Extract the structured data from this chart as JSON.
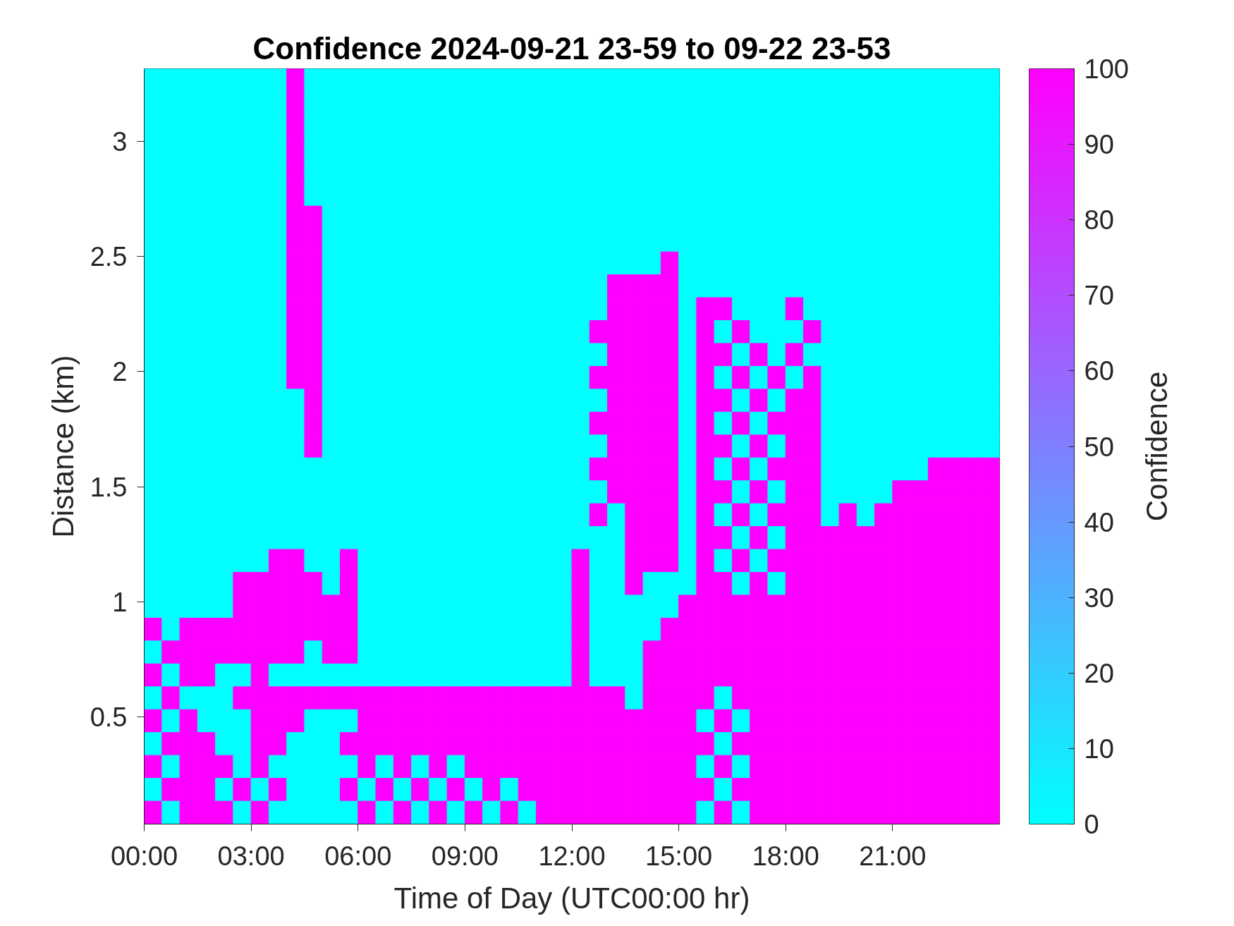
{
  "chart_data": {
    "type": "heatmap",
    "title": "Confidence 2024-09-21 23-59 to 09-22 23-53",
    "xlabel": "Time of Day (UTC00:00 hr)",
    "ylabel": "Distance (km)",
    "clabel": "Confidence",
    "xlim": [
      0,
      24
    ],
    "xticks": [
      {
        "value": 0,
        "label": "00:00"
      },
      {
        "value": 3,
        "label": "03:00"
      },
      {
        "value": 6,
        "label": "06:00"
      },
      {
        "value": 9,
        "label": "09:00"
      },
      {
        "value": 12,
        "label": "12:00"
      },
      {
        "value": 15,
        "label": "15:00"
      },
      {
        "value": 18,
        "label": "18:00"
      },
      {
        "value": 21,
        "label": "21:00"
      }
    ],
    "ylim": [
      0.035,
      3.315
    ],
    "yticks": [
      0.5,
      1,
      1.5,
      2,
      2.5,
      3
    ],
    "clim": [
      0,
      100
    ],
    "cticks": [
      0,
      10,
      20,
      30,
      40,
      50,
      60,
      70,
      80,
      90,
      100
    ],
    "cells": [
      [
        0,
        0,
        0,
        0,
        0,
        0,
        0,
        0,
        100,
        0,
        0,
        0,
        0,
        0,
        0,
        0,
        0,
        0,
        0,
        0,
        0,
        0,
        0,
        0,
        0,
        0,
        0,
        0,
        0,
        0,
        0,
        0,
        0,
        0,
        0,
        0,
        0,
        0,
        0,
        0,
        0,
        0,
        0,
        0,
        0,
        0,
        0,
        0
      ],
      [
        0,
        0,
        0,
        0,
        0,
        0,
        0,
        0,
        100,
        0,
        0,
        0,
        0,
        0,
        0,
        0,
        0,
        0,
        0,
        0,
        0,
        0,
        0,
        0,
        0,
        0,
        0,
        0,
        0,
        0,
        0,
        0,
        0,
        0,
        0,
        0,
        0,
        0,
        0,
        0,
        0,
        0,
        0,
        0,
        0,
        0,
        0,
        0
      ],
      [
        0,
        0,
        0,
        0,
        0,
        0,
        0,
        0,
        100,
        0,
        0,
        0,
        0,
        0,
        0,
        0,
        0,
        0,
        0,
        0,
        0,
        0,
        0,
        0,
        0,
        0,
        0,
        0,
        0,
        0,
        0,
        0,
        0,
        0,
        0,
        0,
        0,
        0,
        0,
        0,
        0,
        0,
        0,
        0,
        0,
        0,
        0,
        0
      ],
      [
        0,
        0,
        0,
        0,
        0,
        0,
        0,
        0,
        100,
        0,
        0,
        0,
        0,
        0,
        0,
        0,
        0,
        0,
        0,
        0,
        0,
        0,
        0,
        0,
        0,
        0,
        0,
        0,
        0,
        0,
        0,
        0,
        0,
        0,
        0,
        0,
        0,
        0,
        0,
        0,
        0,
        0,
        0,
        0,
        0,
        0,
        0,
        0
      ],
      [
        0,
        0,
        0,
        0,
        0,
        0,
        0,
        0,
        100,
        0,
        0,
        0,
        0,
        0,
        0,
        0,
        0,
        0,
        0,
        0,
        0,
        0,
        0,
        0,
        0,
        0,
        0,
        0,
        0,
        0,
        0,
        0,
        0,
        0,
        0,
        0,
        0,
        0,
        0,
        0,
        0,
        0,
        0,
        0,
        0,
        0,
        0,
        0
      ],
      [
        0,
        0,
        0,
        0,
        0,
        0,
        0,
        0,
        100,
        0,
        0,
        0,
        0,
        0,
        0,
        0,
        0,
        0,
        0,
        0,
        0,
        0,
        0,
        0,
        0,
        0,
        0,
        0,
        0,
        0,
        0,
        0,
        0,
        0,
        0,
        0,
        0,
        0,
        0,
        0,
        0,
        0,
        0,
        0,
        0,
        0,
        0,
        0
      ],
      [
        0,
        0,
        0,
        0,
        0,
        0,
        0,
        0,
        100,
        100,
        0,
        0,
        0,
        0,
        0,
        0,
        0,
        0,
        0,
        0,
        0,
        0,
        0,
        0,
        0,
        0,
        0,
        0,
        0,
        0,
        0,
        0,
        0,
        0,
        0,
        0,
        0,
        0,
        0,
        0,
        0,
        0,
        0,
        0,
        0,
        0,
        0,
        0
      ],
      [
        0,
        0,
        0,
        0,
        0,
        0,
        0,
        0,
        100,
        100,
        0,
        0,
        0,
        0,
        0,
        0,
        0,
        0,
        0,
        0,
        0,
        0,
        0,
        0,
        0,
        0,
        0,
        0,
        0,
        0,
        0,
        0,
        0,
        0,
        0,
        0,
        0,
        0,
        0,
        0,
        0,
        0,
        0,
        0,
        0,
        0,
        0,
        0
      ],
      [
        0,
        0,
        0,
        0,
        0,
        0,
        0,
        0,
        100,
        100,
        0,
        0,
        0,
        0,
        0,
        0,
        0,
        0,
        0,
        0,
        0,
        0,
        0,
        0,
        0,
        0,
        0,
        0,
        0,
        100,
        0,
        0,
        0,
        0,
        0,
        0,
        0,
        0,
        0,
        0,
        0,
        0,
        0,
        0,
        0,
        0,
        0,
        0
      ],
      [
        0,
        0,
        0,
        0,
        0,
        0,
        0,
        0,
        100,
        100,
        0,
        0,
        0,
        0,
        0,
        0,
        0,
        0,
        0,
        0,
        0,
        0,
        0,
        0,
        0,
        0,
        100,
        100,
        100,
        100,
        0,
        0,
        0,
        0,
        0,
        0,
        0,
        0,
        0,
        0,
        0,
        0,
        0,
        0,
        0,
        0,
        0,
        0
      ],
      [
        0,
        0,
        0,
        0,
        0,
        0,
        0,
        0,
        100,
        100,
        0,
        0,
        0,
        0,
        0,
        0,
        0,
        0,
        0,
        0,
        0,
        0,
        0,
        0,
        0,
        0,
        100,
        100,
        100,
        100,
        0,
        100,
        100,
        0,
        0,
        0,
        100,
        0,
        0,
        0,
        0,
        0,
        0,
        0,
        0,
        0,
        0,
        0
      ],
      [
        0,
        0,
        0,
        0,
        0,
        0,
        0,
        0,
        100,
        100,
        0,
        0,
        0,
        0,
        0,
        0,
        0,
        0,
        0,
        0,
        0,
        0,
        0,
        0,
        0,
        100,
        100,
        100,
        100,
        100,
        0,
        100,
        0,
        100,
        0,
        0,
        0,
        100,
        0,
        0,
        0,
        0,
        0,
        0,
        0,
        0,
        0,
        0
      ],
      [
        0,
        0,
        0,
        0,
        0,
        0,
        0,
        0,
        100,
        100,
        0,
        0,
        0,
        0,
        0,
        0,
        0,
        0,
        0,
        0,
        0,
        0,
        0,
        0,
        0,
        0,
        100,
        100,
        100,
        100,
        0,
        100,
        100,
        0,
        100,
        0,
        100,
        0,
        0,
        0,
        0,
        0,
        0,
        0,
        0,
        0,
        0,
        0
      ],
      [
        0,
        0,
        0,
        0,
        0,
        0,
        0,
        0,
        100,
        100,
        0,
        0,
        0,
        0,
        0,
        0,
        0,
        0,
        0,
        0,
        0,
        0,
        0,
        0,
        0,
        100,
        100,
        100,
        100,
        100,
        0,
        100,
        0,
        100,
        0,
        100,
        0,
        100,
        0,
        0,
        0,
        0,
        0,
        0,
        0,
        0,
        0,
        0
      ],
      [
        0,
        0,
        0,
        0,
        0,
        0,
        0,
        0,
        0,
        100,
        0,
        0,
        0,
        0,
        0,
        0,
        0,
        0,
        0,
        0,
        0,
        0,
        0,
        0,
        0,
        0,
        100,
        100,
        100,
        100,
        0,
        100,
        100,
        0,
        100,
        0,
        100,
        100,
        0,
        0,
        0,
        0,
        0,
        0,
        0,
        0,
        0,
        0
      ],
      [
        0,
        0,
        0,
        0,
        0,
        0,
        0,
        0,
        0,
        100,
        0,
        0,
        0,
        0,
        0,
        0,
        0,
        0,
        0,
        0,
        0,
        0,
        0,
        0,
        0,
        100,
        100,
        100,
        100,
        100,
        0,
        100,
        0,
        100,
        0,
        100,
        100,
        100,
        0,
        0,
        0,
        0,
        0,
        0,
        0,
        0,
        0,
        0
      ],
      [
        0,
        0,
        0,
        0,
        0,
        0,
        0,
        0,
        0,
        100,
        0,
        0,
        0,
        0,
        0,
        0,
        0,
        0,
        0,
        0,
        0,
        0,
        0,
        0,
        0,
        0,
        100,
        100,
        100,
        100,
        0,
        100,
        100,
        0,
        100,
        0,
        100,
        100,
        0,
        0,
        0,
        0,
        0,
        0,
        0,
        0,
        0,
        0
      ],
      [
        0,
        0,
        0,
        0,
        0,
        0,
        0,
        0,
        0,
        0,
        0,
        0,
        0,
        0,
        0,
        0,
        0,
        0,
        0,
        0,
        0,
        0,
        0,
        0,
        0,
        100,
        100,
        100,
        100,
        100,
        0,
        100,
        0,
        100,
        0,
        100,
        100,
        100,
        0,
        0,
        0,
        0,
        0,
        0,
        100,
        100,
        100,
        100
      ],
      [
        0,
        0,
        0,
        0,
        0,
        0,
        0,
        0,
        0,
        0,
        0,
        0,
        0,
        0,
        0,
        0,
        0,
        0,
        0,
        0,
        0,
        0,
        0,
        0,
        0,
        0,
        100,
        100,
        100,
        100,
        0,
        100,
        100,
        0,
        100,
        0,
        100,
        100,
        0,
        0,
        0,
        0,
        100,
        100,
        100,
        100,
        100,
        100
      ],
      [
        0,
        0,
        0,
        0,
        0,
        0,
        0,
        0,
        0,
        0,
        0,
        0,
        0,
        0,
        0,
        0,
        0,
        0,
        0,
        0,
        0,
        0,
        0,
        0,
        0,
        100,
        0,
        100,
        100,
        100,
        0,
        100,
        0,
        100,
        0,
        100,
        100,
        100,
        0,
        100,
        0,
        100,
        100,
        100,
        100,
        100,
        100,
        100
      ],
      [
        0,
        0,
        0,
        0,
        0,
        0,
        0,
        0,
        0,
        0,
        0,
        0,
        0,
        0,
        0,
        0,
        0,
        0,
        0,
        0,
        0,
        0,
        0,
        0,
        0,
        0,
        0,
        100,
        100,
        100,
        0,
        100,
        100,
        0,
        100,
        0,
        100,
        100,
        100,
        100,
        100,
        100,
        100,
        100,
        100,
        100,
        100,
        100
      ],
      [
        0,
        0,
        0,
        0,
        0,
        0,
        0,
        100,
        100,
        0,
        0,
        100,
        0,
        0,
        0,
        0,
        0,
        0,
        0,
        0,
        0,
        0,
        0,
        0,
        100,
        0,
        0,
        100,
        100,
        100,
        0,
        100,
        0,
        100,
        0,
        100,
        100,
        100,
        100,
        100,
        100,
        100,
        100,
        100,
        100,
        100,
        100,
        100
      ],
      [
        0,
        0,
        0,
        0,
        0,
        100,
        100,
        100,
        100,
        100,
        0,
        100,
        0,
        0,
        0,
        0,
        0,
        0,
        0,
        0,
        0,
        0,
        0,
        0,
        100,
        0,
        0,
        100,
        0,
        0,
        0,
        100,
        100,
        0,
        100,
        0,
        100,
        100,
        100,
        100,
        100,
        100,
        100,
        100,
        100,
        100,
        100,
        100
      ],
      [
        0,
        0,
        0,
        0,
        0,
        100,
        100,
        100,
        100,
        100,
        100,
        100,
        0,
        0,
        0,
        0,
        0,
        0,
        0,
        0,
        0,
        0,
        0,
        0,
        100,
        0,
        0,
        0,
        0,
        0,
        100,
        100,
        100,
        100,
        100,
        100,
        100,
        100,
        100,
        100,
        100,
        100,
        100,
        100,
        100,
        100,
        100,
        100
      ],
      [
        100,
        0,
        100,
        100,
        100,
        100,
        100,
        100,
        100,
        100,
        100,
        100,
        0,
        0,
        0,
        0,
        0,
        0,
        0,
        0,
        0,
        0,
        0,
        0,
        100,
        0,
        0,
        0,
        0,
        100,
        100,
        100,
        100,
        100,
        100,
        100,
        100,
        100,
        100,
        100,
        100,
        100,
        100,
        100,
        100,
        100,
        100,
        100
      ],
      [
        0,
        100,
        100,
        100,
        100,
        100,
        100,
        100,
        100,
        0,
        100,
        100,
        0,
        0,
        0,
        0,
        0,
        0,
        0,
        0,
        0,
        0,
        0,
        0,
        100,
        0,
        0,
        0,
        100,
        100,
        100,
        100,
        100,
        100,
        100,
        100,
        100,
        100,
        100,
        100,
        100,
        100,
        100,
        100,
        100,
        100,
        100,
        100
      ],
      [
        100,
        0,
        100,
        100,
        0,
        0,
        100,
        0,
        0,
        0,
        0,
        0,
        0,
        0,
        0,
        0,
        0,
        0,
        0,
        0,
        0,
        0,
        0,
        0,
        100,
        0,
        0,
        0,
        100,
        100,
        100,
        100,
        100,
        100,
        100,
        100,
        100,
        100,
        100,
        100,
        100,
        100,
        100,
        100,
        100,
        100,
        100,
        100
      ],
      [
        0,
        100,
        0,
        0,
        0,
        100,
        100,
        100,
        100,
        100,
        100,
        100,
        100,
        100,
        100,
        100,
        100,
        100,
        100,
        100,
        100,
        100,
        100,
        100,
        100,
        100,
        100,
        0,
        100,
        100,
        100,
        100,
        0,
        100,
        100,
        100,
        100,
        100,
        100,
        100,
        100,
        100,
        100,
        100,
        100,
        100,
        100,
        100
      ],
      [
        100,
        0,
        100,
        0,
        0,
        0,
        100,
        100,
        100,
        0,
        0,
        0,
        100,
        100,
        100,
        100,
        100,
        100,
        100,
        100,
        100,
        100,
        100,
        100,
        100,
        100,
        100,
        100,
        100,
        100,
        100,
        0,
        100,
        0,
        100,
        100,
        100,
        100,
        100,
        100,
        100,
        100,
        100,
        100,
        100,
        100,
        100,
        100
      ],
      [
        0,
        100,
        100,
        100,
        0,
        0,
        100,
        100,
        0,
        0,
        0,
        100,
        100,
        100,
        100,
        100,
        100,
        100,
        100,
        100,
        100,
        100,
        100,
        100,
        100,
        100,
        100,
        100,
        100,
        100,
        100,
        100,
        0,
        100,
        100,
        100,
        100,
        100,
        100,
        100,
        100,
        100,
        100,
        100,
        100,
        100,
        100,
        100
      ],
      [
        100,
        0,
        100,
        100,
        100,
        0,
        100,
        0,
        0,
        0,
        0,
        0,
        100,
        0,
        100,
        0,
        100,
        0,
        100,
        100,
        100,
        100,
        100,
        100,
        100,
        100,
        100,
        100,
        100,
        100,
        100,
        0,
        100,
        0,
        100,
        100,
        100,
        100,
        100,
        100,
        100,
        100,
        100,
        100,
        100,
        100,
        100,
        100
      ],
      [
        0,
        100,
        100,
        100,
        0,
        100,
        0,
        100,
        0,
        0,
        0,
        100,
        0,
        100,
        0,
        100,
        0,
        100,
        0,
        100,
        0,
        100,
        100,
        100,
        100,
        100,
        100,
        100,
        100,
        100,
        100,
        100,
        0,
        100,
        100,
        100,
        100,
        100,
        100,
        100,
        100,
        100,
        100,
        100,
        100,
        100,
        100,
        100
      ],
      [
        100,
        0,
        100,
        100,
        100,
        0,
        100,
        0,
        0,
        0,
        0,
        0,
        100,
        0,
        100,
        0,
        100,
        0,
        100,
        0,
        100,
        0,
        100,
        100,
        100,
        100,
        100,
        100,
        100,
        100,
        100,
        0,
        100,
        0,
        100,
        100,
        100,
        100,
        100,
        100,
        100,
        100,
        100,
        100,
        100,
        100,
        100,
        100
      ]
    ]
  }
}
